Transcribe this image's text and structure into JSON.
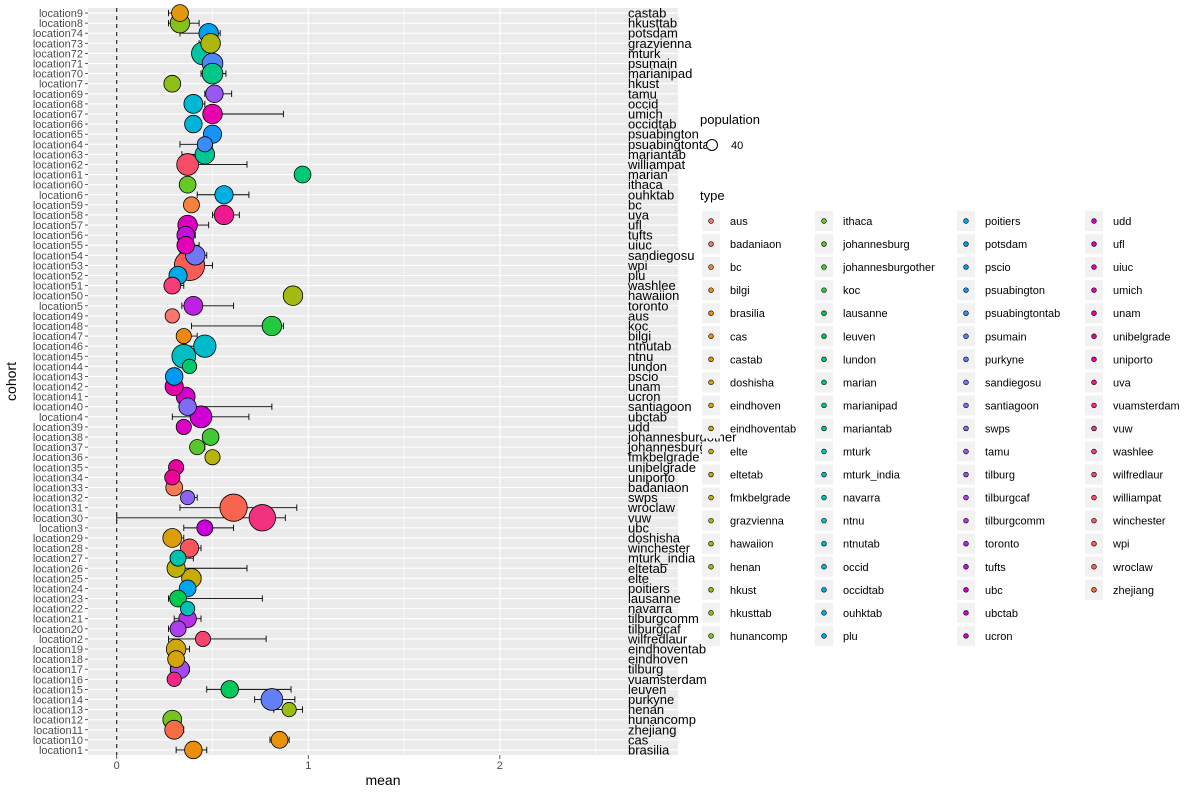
{
  "chart_data": {
    "type": "scatter",
    "xlabel": "mean",
    "ylabel": "cohort",
    "xlim": [
      -0.15,
      2.93
    ],
    "x_ticks": [
      0,
      1,
      2
    ],
    "reference_line_x": 0,
    "grid": true,
    "legend_placement": "right",
    "legend_size_title": "population",
    "legend_size_label": "40",
    "legend_type_title": "type",
    "rows": [
      {
        "cohort": "location9",
        "site": "castab",
        "mean": 0.33,
        "lo": 0.27,
        "hi": 0.36,
        "n": 40
      },
      {
        "cohort": "location8",
        "site": "hkusttab",
        "mean": 0.33,
        "lo": 0.27,
        "hi": 0.43,
        "n": 60
      },
      {
        "cohort": "location74",
        "site": "potsdam",
        "mean": 0.48,
        "lo": 0.33,
        "hi": 0.54,
        "n": 60
      },
      {
        "cohort": "location73",
        "site": "grazvienna",
        "mean": 0.49,
        "lo": 0.43,
        "hi": 0.53,
        "n": 60
      },
      {
        "cohort": "location72",
        "site": "mturk",
        "mean": 0.45,
        "lo": 0.4,
        "hi": 0.5,
        "n": 90
      },
      {
        "cohort": "location71",
        "site": "psumain",
        "mean": 0.5,
        "lo": 0.46,
        "hi": 0.54,
        "n": 70
      },
      {
        "cohort": "location70",
        "site": "marianipad",
        "mean": 0.5,
        "lo": 0.44,
        "hi": 0.57,
        "n": 70
      },
      {
        "cohort": "location7",
        "site": "hkust",
        "mean": 0.29,
        "lo": 0.26,
        "hi": 0.32,
        "n": 40
      },
      {
        "cohort": "location69",
        "site": "tamu",
        "mean": 0.51,
        "lo": 0.46,
        "hi": 0.6,
        "n": 45
      },
      {
        "cohort": "location68",
        "site": "occid",
        "mean": 0.4,
        "lo": 0.36,
        "hi": 0.46,
        "n": 55
      },
      {
        "cohort": "location67",
        "site": "umich",
        "mean": 0.5,
        "lo": 0.47,
        "hi": 0.87,
        "n": 60
      },
      {
        "cohort": "location66",
        "site": "occidtab",
        "mean": 0.4,
        "lo": 0.37,
        "hi": 0.44,
        "n": 45
      },
      {
        "cohort": "location65",
        "site": "psuabington",
        "mean": 0.5,
        "lo": 0.47,
        "hi": 0.54,
        "n": 50
      },
      {
        "cohort": "location64",
        "site": "psuabingtontab",
        "mean": 0.46,
        "lo": 0.33,
        "hi": 0.5,
        "n": 30
      },
      {
        "cohort": "location63",
        "site": "mariantab",
        "mean": 0.46,
        "lo": 0.34,
        "hi": 0.5,
        "n": 60
      },
      {
        "cohort": "location62",
        "site": "williampat",
        "mean": 0.37,
        "lo": 0.33,
        "hi": 0.68,
        "n": 80
      },
      {
        "cohort": "location61",
        "site": "marian",
        "mean": 0.97,
        "lo": 0.94,
        "hi": 0.99,
        "n": 40
      },
      {
        "cohort": "location60",
        "site": "ithaca",
        "mean": 0.37,
        "lo": 0.34,
        "hi": 0.4,
        "n": 40
      },
      {
        "cohort": "location6",
        "site": "ouhktab",
        "mean": 0.56,
        "lo": 0.42,
        "hi": 0.69,
        "n": 50
      },
      {
        "cohort": "location59",
        "site": "bc",
        "mean": 0.39,
        "lo": 0.37,
        "hi": 0.42,
        "n": 35
      },
      {
        "cohort": "location58",
        "site": "uva",
        "mean": 0.56,
        "lo": 0.5,
        "hi": 0.64,
        "n": 60
      },
      {
        "cohort": "location57",
        "site": "ufl",
        "mean": 0.37,
        "lo": 0.33,
        "hi": 0.48,
        "n": 60
      },
      {
        "cohort": "location56",
        "site": "tufts",
        "mean": 0.36,
        "lo": 0.33,
        "hi": 0.41,
        "n": 45
      },
      {
        "cohort": "location55",
        "site": "uiuc",
        "mean": 0.36,
        "lo": 0.32,
        "hi": 0.43,
        "n": 45
      },
      {
        "cohort": "location54",
        "site": "sandiegosu",
        "mean": 0.41,
        "lo": 0.33,
        "hi": 0.47,
        "n": 60
      },
      {
        "cohort": "location53",
        "site": "wpi",
        "mean": 0.38,
        "lo": 0.34,
        "hi": 0.5,
        "n": 180
      },
      {
        "cohort": "location52",
        "site": "plu",
        "mean": 0.32,
        "lo": 0.29,
        "hi": 0.35,
        "n": 50
      },
      {
        "cohort": "location51",
        "site": "washlee",
        "mean": 0.29,
        "lo": 0.26,
        "hi": 0.35,
        "n": 40
      },
      {
        "cohort": "location50",
        "site": "hawaiion",
        "mean": 0.92,
        "lo": 0.89,
        "hi": 0.96,
        "n": 60
      },
      {
        "cohort": "location5",
        "site": "toronto",
        "mean": 0.4,
        "lo": 0.34,
        "hi": 0.61,
        "n": 55
      },
      {
        "cohort": "location49",
        "site": "aus",
        "mean": 0.29,
        "lo": 0.28,
        "hi": 0.31,
        "n": 25
      },
      {
        "cohort": "location48",
        "site": "koc",
        "mean": 0.81,
        "lo": 0.39,
        "hi": 0.87,
        "n": 60
      },
      {
        "cohort": "location47",
        "site": "bilgi",
        "mean": 0.35,
        "lo": 0.33,
        "hi": 0.42,
        "n": 30
      },
      {
        "cohort": "location46",
        "site": "ntnutab",
        "mean": 0.46,
        "lo": 0.36,
        "hi": 0.51,
        "n": 85
      },
      {
        "cohort": "location45",
        "site": "ntnu",
        "mean": 0.35,
        "lo": 0.31,
        "hi": 0.39,
        "n": 100
      },
      {
        "cohort": "location44",
        "site": "lundon",
        "mean": 0.38,
        "lo": 0.36,
        "hi": 0.4,
        "n": 25
      },
      {
        "cohort": "location43",
        "site": "pscio",
        "mean": 0.3,
        "lo": 0.27,
        "hi": 0.32,
        "n": 45
      },
      {
        "cohort": "location42",
        "site": "unam",
        "mean": 0.3,
        "lo": 0.27,
        "hi": 0.34,
        "n": 50
      },
      {
        "cohort": "location41",
        "site": "ucron",
        "mean": 0.36,
        "lo": 0.33,
        "hi": 0.4,
        "n": 55
      },
      {
        "cohort": "location40",
        "site": "santiagoon",
        "mean": 0.37,
        "lo": 0.33,
        "hi": 0.81,
        "n": 45
      },
      {
        "cohort": "location4",
        "site": "ubctab",
        "mean": 0.44,
        "lo": 0.29,
        "hi": 0.69,
        "n": 80
      },
      {
        "cohort": "location39",
        "site": "udd",
        "mean": 0.35,
        "lo": 0.33,
        "hi": 0.37,
        "n": 30
      },
      {
        "cohort": "location38",
        "site": "johannesburgother",
        "mean": 0.49,
        "lo": 0.46,
        "hi": 0.51,
        "n": 40
      },
      {
        "cohort": "location37",
        "site": "johannesburg",
        "mean": 0.42,
        "lo": 0.39,
        "hi": 0.46,
        "n": 30
      },
      {
        "cohort": "location36",
        "site": "fmkbelgrade",
        "mean": 0.5,
        "lo": 0.48,
        "hi": 0.51,
        "n": 30
      },
      {
        "cohort": "location35",
        "site": "unibelgrade",
        "mean": 0.31,
        "lo": 0.28,
        "hi": 0.33,
        "n": 30
      },
      {
        "cohort": "location34",
        "site": "uniporto",
        "mean": 0.29,
        "lo": 0.27,
        "hi": 0.31,
        "n": 30
      },
      {
        "cohort": "location33",
        "site": "badaniaon",
        "mean": 0.3,
        "lo": 0.27,
        "hi": 0.34,
        "n": 40
      },
      {
        "cohort": "location32",
        "site": "swps",
        "mean": 0.37,
        "lo": 0.36,
        "hi": 0.42,
        "n": 25
      },
      {
        "cohort": "location31",
        "site": "wroclaw",
        "mean": 0.61,
        "lo": 0.33,
        "hi": 0.94,
        "n": 140
      },
      {
        "cohort": "location30",
        "site": "vuw",
        "mean": 0.76,
        "lo": 0.0,
        "hi": 0.88,
        "n": 130
      },
      {
        "cohort": "location3",
        "site": "ubc",
        "mean": 0.46,
        "lo": 0.35,
        "hi": 0.61,
        "n": 35
      },
      {
        "cohort": "location29",
        "site": "doshisha",
        "mean": 0.29,
        "lo": 0.27,
        "hi": 0.35,
        "n": 55
      },
      {
        "cohort": "location28",
        "site": "winchester",
        "mean": 0.38,
        "lo": 0.35,
        "hi": 0.44,
        "n": 50
      },
      {
        "cohort": "location27",
        "site": "mturk_india",
        "mean": 0.32,
        "lo": 0.28,
        "hi": 0.4,
        "n": 35
      },
      {
        "cohort": "location26",
        "site": "eltetab",
        "mean": 0.31,
        "lo": 0.27,
        "hi": 0.68,
        "n": 50
      },
      {
        "cohort": "location25",
        "site": "elte",
        "mean": 0.39,
        "lo": 0.36,
        "hi": 0.44,
        "n": 60
      },
      {
        "cohort": "location24",
        "site": "poitiers",
        "mean": 0.37,
        "lo": 0.34,
        "hi": 0.41,
        "n": 40
      },
      {
        "cohort": "location23",
        "site": "lausanne",
        "mean": 0.32,
        "lo": 0.27,
        "hi": 0.76,
        "n": 40
      },
      {
        "cohort": "location22",
        "site": "navarra",
        "mean": 0.37,
        "lo": 0.35,
        "hi": 0.39,
        "n": 25
      },
      {
        "cohort": "location21",
        "site": "tilburgcomm",
        "mean": 0.37,
        "lo": 0.3,
        "hi": 0.44,
        "n": 45
      },
      {
        "cohort": "location20",
        "site": "tilburgcaf",
        "mean": 0.32,
        "lo": 0.27,
        "hi": 0.36,
        "n": 35
      },
      {
        "cohort": "location2",
        "site": "wilfredlaur",
        "mean": 0.45,
        "lo": 0.27,
        "hi": 0.78,
        "n": 30
      },
      {
        "cohort": "location19",
        "site": "eindhoventab",
        "mean": 0.31,
        "lo": 0.27,
        "hi": 0.38,
        "n": 60
      },
      {
        "cohort": "location18",
        "site": "eindhoven",
        "mean": 0.31,
        "lo": 0.29,
        "hi": 0.33,
        "n": 40
      },
      {
        "cohort": "location17",
        "site": "tilburg",
        "mean": 0.33,
        "lo": 0.28,
        "hi": 0.38,
        "n": 55
      },
      {
        "cohort": "location16",
        "site": "vuamsterdam",
        "mean": 0.3,
        "lo": 0.28,
        "hi": 0.32,
        "n": 25
      },
      {
        "cohort": "location15",
        "site": "leuven",
        "mean": 0.59,
        "lo": 0.47,
        "hi": 0.91,
        "n": 45
      },
      {
        "cohort": "location14",
        "site": "purkyne",
        "mean": 0.81,
        "lo": 0.72,
        "hi": 0.93,
        "n": 80
      },
      {
        "cohort": "location13",
        "site": "henan",
        "mean": 0.9,
        "lo": 0.82,
        "hi": 0.97,
        "n": 25
      },
      {
        "cohort": "location12",
        "site": "hunancomp",
        "mean": 0.29,
        "lo": 0.26,
        "hi": 0.32,
        "n": 55
      },
      {
        "cohort": "location11",
        "site": "zhejiang",
        "mean": 0.3,
        "lo": 0.27,
        "hi": 0.35,
        "n": 55
      },
      {
        "cohort": "location10",
        "site": "cas",
        "mean": 0.85,
        "lo": 0.8,
        "hi": 0.9,
        "n": 40
      },
      {
        "cohort": "location1",
        "site": "brasilia",
        "mean": 0.4,
        "lo": 0.31,
        "hi": 0.47,
        "n": 45
      }
    ],
    "legend_types": [
      {
        "name": "aus",
        "color": "#F8766D"
      },
      {
        "name": "badaniaon",
        "color": "#F67C57"
      },
      {
        "name": "bc",
        "color": "#F4823C"
      },
      {
        "name": "bilgi",
        "color": "#F08810"
      },
      {
        "name": "brasilia",
        "color": "#EC8E0A"
      },
      {
        "name": "cas",
        "color": "#E7940A"
      },
      {
        "name": "castab",
        "color": "#E1990A"
      },
      {
        "name": "doshisha",
        "color": "#DB9E0A"
      },
      {
        "name": "eindhoven",
        "color": "#D5A30B"
      },
      {
        "name": "eindhoventab",
        "color": "#CEA80B"
      },
      {
        "name": "elte",
        "color": "#C6AC0B"
      },
      {
        "name": "eltetab",
        "color": "#BEB00C"
      },
      {
        "name": "fmkbelgrade",
        "color": "#B6B40D"
      },
      {
        "name": "grazvienna",
        "color": "#ADB70E"
      },
      {
        "name": "hawaiion",
        "color": "#A3BA10"
      },
      {
        "name": "henan",
        "color": "#99BD13"
      },
      {
        "name": "hkust",
        "color": "#8EC016"
      },
      {
        "name": "hkusttab",
        "color": "#83C21A"
      },
      {
        "name": "hunancomp",
        "color": "#76C41F"
      },
      {
        "name": "ithaca",
        "color": "#68C625"
      },
      {
        "name": "johannesburg",
        "color": "#58C72C"
      },
      {
        "name": "johannesburgother",
        "color": "#43C835"
      },
      {
        "name": "koc",
        "color": "#25C940"
      },
      {
        "name": "lausanne",
        "color": "#00C94D"
      },
      {
        "name": "leuven",
        "color": "#00C95B"
      },
      {
        "name": "lundon",
        "color": "#00C96A"
      },
      {
        "name": "marian",
        "color": "#00C879"
      },
      {
        "name": "marianipad",
        "color": "#00C787"
      },
      {
        "name": "mariantab",
        "color": "#00C694"
      },
      {
        "name": "mturk",
        "color": "#00C4A1"
      },
      {
        "name": "mturk_india",
        "color": "#00C2AD"
      },
      {
        "name": "navarra",
        "color": "#00C0B8"
      },
      {
        "name": "ntnu",
        "color": "#00BDC2"
      },
      {
        "name": "ntnutab",
        "color": "#00BACB"
      },
      {
        "name": "occid",
        "color": "#00B7D4"
      },
      {
        "name": "occidtab",
        "color": "#00B3DB"
      },
      {
        "name": "ouhktab",
        "color": "#00AFE2"
      },
      {
        "name": "plu",
        "color": "#00AAE8"
      },
      {
        "name": "poitiers",
        "color": "#00A5ED"
      },
      {
        "name": "potsdam",
        "color": "#00A0F1"
      },
      {
        "name": "pscio",
        "color": "#009AF4"
      },
      {
        "name": "psuabington",
        "color": "#1394F6"
      },
      {
        "name": "psuabingtontab",
        "color": "#3A8DF8"
      },
      {
        "name": "psumain",
        "color": "#5086F9"
      },
      {
        "name": "purkyne",
        "color": "#627EF9"
      },
      {
        "name": "sandiegosu",
        "color": "#7276F8"
      },
      {
        "name": "santiagoon",
        "color": "#806DF7"
      },
      {
        "name": "swps",
        "color": "#8C63F5"
      },
      {
        "name": "tamu",
        "color": "#9858F3"
      },
      {
        "name": "tilburg",
        "color": "#A34CF0"
      },
      {
        "name": "tilburgcaf",
        "color": "#AC40EC"
      },
      {
        "name": "tilburgcomm",
        "color": "#B532E8"
      },
      {
        "name": "toronto",
        "color": "#BD21E3"
      },
      {
        "name": "tufts",
        "color": "#C40FDE"
      },
      {
        "name": "ubc",
        "color": "#CA00D9"
      },
      {
        "name": "ubctab",
        "color": "#D000D3"
      },
      {
        "name": "ucron",
        "color": "#D500CD"
      },
      {
        "name": "udd",
        "color": "#DA00C6"
      },
      {
        "name": "ufl",
        "color": "#DE00BF"
      },
      {
        "name": "uiuc",
        "color": "#E200B8"
      },
      {
        "name": "umich",
        "color": "#E500B0"
      },
      {
        "name": "unam",
        "color": "#E800A8"
      },
      {
        "name": "unibelgrade",
        "color": "#EB00A0"
      },
      {
        "name": "uniporto",
        "color": "#EE0398"
      },
      {
        "name": "uva",
        "color": "#F01990"
      },
      {
        "name": "vuamsterdam",
        "color": "#F22787"
      },
      {
        "name": "vuw",
        "color": "#F3327F"
      },
      {
        "name": "washlee",
        "color": "#F53C77"
      },
      {
        "name": "wilfredlaur",
        "color": "#F6456F"
      },
      {
        "name": "williampat",
        "color": "#F74D67"
      },
      {
        "name": "winchester",
        "color": "#F8555F"
      },
      {
        "name": "wpi",
        "color": "#F85D56"
      },
      {
        "name": "wroclaw",
        "color": "#F8654E"
      },
      {
        "name": "zhejiang",
        "color": "#F86D46"
      }
    ]
  }
}
